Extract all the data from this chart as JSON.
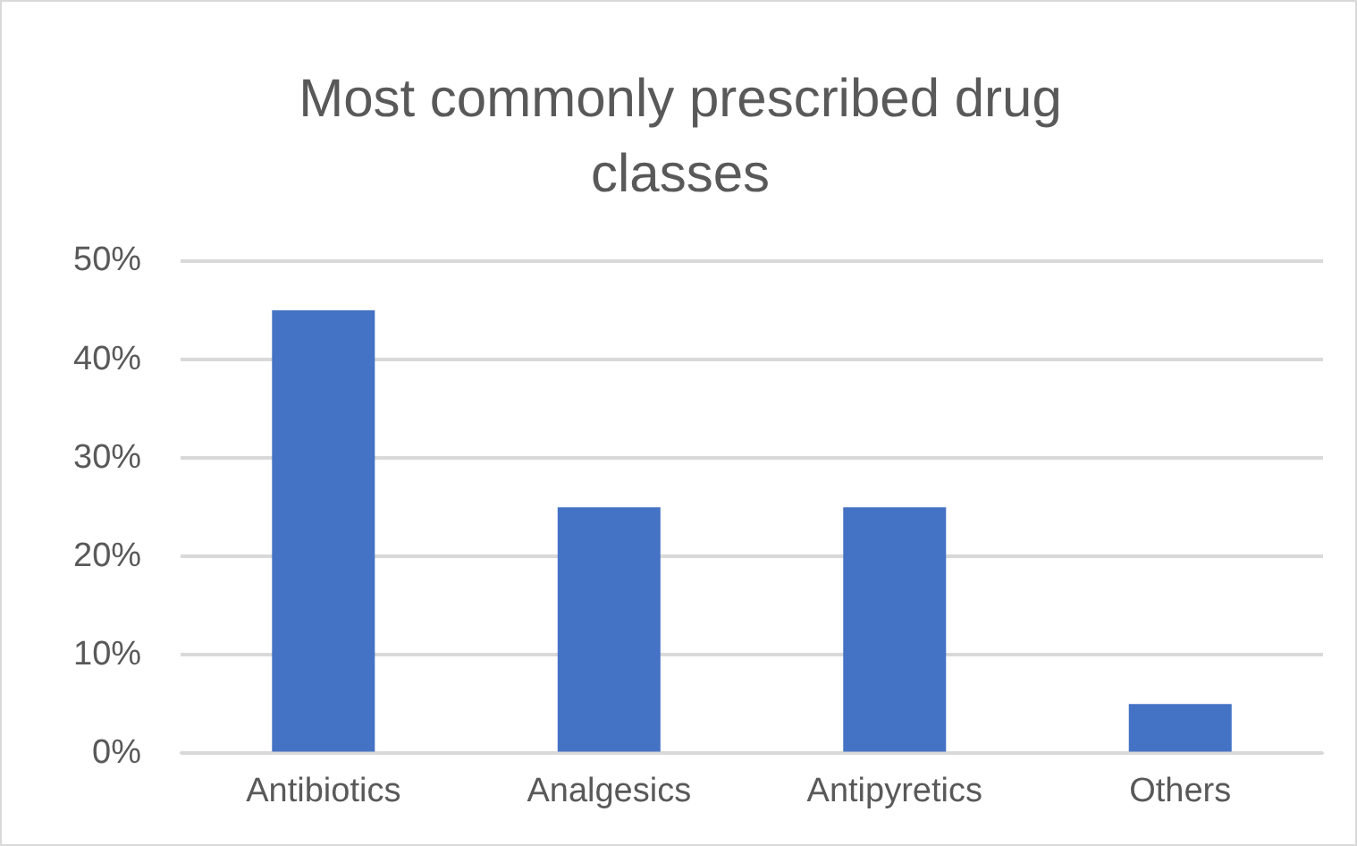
{
  "chart_data": {
    "type": "bar",
    "title": "Most commonly prescribed drug classes",
    "categories": [
      "Antibiotics",
      "Analgesics",
      "Antipyretics",
      "Others"
    ],
    "values": [
      45,
      25,
      25,
      5
    ],
    "color": "#4472c4",
    "ylim": [
      0,
      50
    ],
    "yticks": [
      {
        "value": 0,
        "label": "0%"
      },
      {
        "value": 10,
        "label": "10%"
      },
      {
        "value": 20,
        "label": "20%"
      },
      {
        "value": 30,
        "label": "30%"
      },
      {
        "value": 40,
        "label": "40%"
      },
      {
        "value": 50,
        "label": "50%"
      }
    ],
    "grid": "y",
    "legend": false
  }
}
